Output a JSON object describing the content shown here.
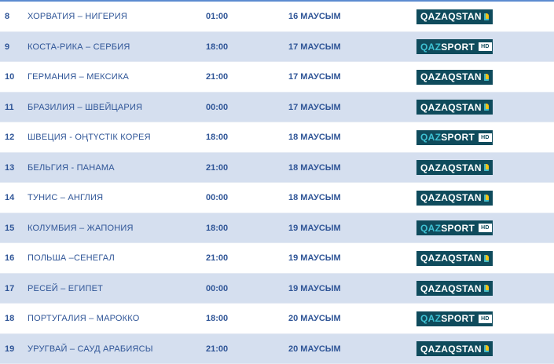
{
  "colors": {
    "text": "#2f5597",
    "alt_row": "#d5dfef",
    "logo_bg": "#0f4b5c"
  },
  "rows": [
    {
      "num": "8",
      "match": "ХОРВАТИЯ – НИГЕРИЯ",
      "time": "01:00",
      "date": "16 МАУСЫМ",
      "channel": "QAZAQSTAN"
    },
    {
      "num": "9",
      "match": "КОСТА-РИКА – СЕРБИЯ",
      "time": "18:00",
      "date": "17 МАУСЫМ",
      "channel": "QAZSPORT HD"
    },
    {
      "num": "10",
      "match": "ГЕРМАНИЯ – МЕКСИКА",
      "time": "21:00",
      "date": "17 МАУСЫМ",
      "channel": "QAZAQSTAN"
    },
    {
      "num": "11",
      "match": "БРАЗИЛИЯ – ШВЕЙЦАРИЯ",
      "time": "00:00",
      "date": "17 МАУСЫМ",
      "channel": "QAZAQSTAN"
    },
    {
      "num": "12",
      "match": "ШВЕЦИЯ  - ОҢТҮСТІК КОРЕЯ",
      "time": "18:00",
      "date": "18 МАУСЫМ",
      "channel": "QAZSPORT HD"
    },
    {
      "num": "13",
      "match": "БЕЛЬГИЯ - ПАНАМА",
      "time": "21:00",
      "date": "18 МАУСЫМ",
      "channel": "QAZAQSTAN"
    },
    {
      "num": "14",
      "match": "ТУНИС – АНГЛИЯ",
      "time": "00:00",
      "date": "18 МАУСЫМ",
      "channel": "QAZAQSTAN"
    },
    {
      "num": "15",
      "match": "КОЛУМБИЯ – ЖАПОНИЯ",
      "time": "18:00",
      "date": "19 МАУСЫМ",
      "channel": "QAZSPORT HD"
    },
    {
      "num": "16",
      "match": "ПОЛЬША –СЕНЕГАЛ",
      "time": "21:00",
      "date": "19 МАУСЫМ",
      "channel": "QAZAQSTAN"
    },
    {
      "num": "17",
      "match": "РЕСЕЙ – ЕГИПЕТ",
      "time": "00:00",
      "date": "19 МАУСЫМ",
      "channel": "QAZAQSTAN"
    },
    {
      "num": "18",
      "match": "ПОРТУГАЛИЯ – МАРОККО",
      "time": "18:00",
      "date": "20 МАУСЫМ",
      "channel": "QAZSPORT HD"
    },
    {
      "num": "19",
      "match": "УРУГВАЙ – САУД АРАБИЯСЫ",
      "time": "21:00",
      "date": "20 МАУСЫМ",
      "channel": "QAZAQSTAN"
    }
  ]
}
